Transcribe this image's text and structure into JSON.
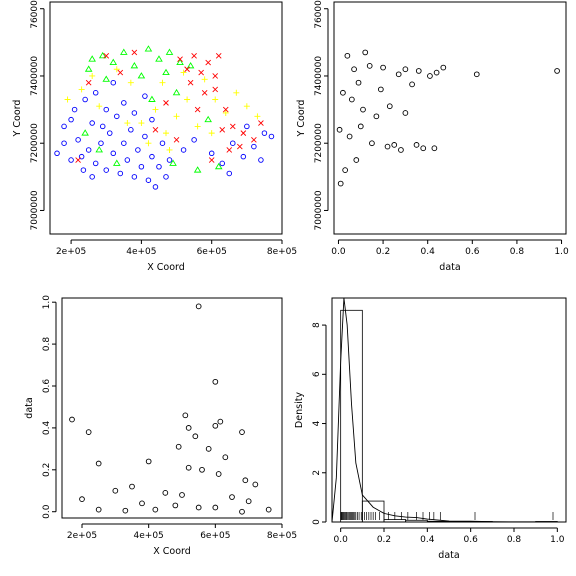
{
  "chart_data": [
    {
      "id": "map",
      "type": "scatter",
      "xlabel": "X Coord",
      "ylabel": "Y Coord",
      "xlim": [
        140000,
        800000
      ],
      "ylim": [
        6930000,
        7620000
      ],
      "xticks": [
        200000,
        400000,
        600000,
        800000
      ],
      "xtick_labels": [
        "2e+05",
        "4e+05",
        "6e+05",
        "8e+05"
      ],
      "yticks": [
        7000000,
        7200000,
        7400000,
        7600000
      ],
      "ytick_labels": [
        "7000000",
        "7200000",
        "7400000",
        "7600000"
      ],
      "colors": {
        "class1": "#0000ff",
        "class2": "#ffff00",
        "class3": "#00ff00",
        "class4": "#ff0000"
      },
      "series": [
        {
          "symbol": "circle",
          "color": "#0000ff",
          "points": [
            [
              160000,
              7170000
            ],
            [
              180000,
              7250000
            ],
            [
              200000,
              7150000
            ],
            [
              220000,
              7210000
            ],
            [
              235000,
              7120000
            ],
            [
              250000,
              7180000
            ],
            [
              260000,
              7260000
            ],
            [
              270000,
              7140000
            ],
            [
              285000,
              7200000
            ],
            [
              300000,
              7120000
            ],
            [
              310000,
              7230000
            ],
            [
              320000,
              7170000
            ],
            [
              330000,
              7280000
            ],
            [
              340000,
              7110000
            ],
            [
              350000,
              7200000
            ],
            [
              360000,
              7150000
            ],
            [
              370000,
              7240000
            ],
            [
              380000,
              7100000
            ],
            [
              390000,
              7180000
            ],
            [
              400000,
              7130000
            ],
            [
              410000,
              7220000
            ],
            [
              420000,
              7090000
            ],
            [
              430000,
              7160000
            ],
            [
              440000,
              7070000
            ],
            [
              450000,
              7130000
            ],
            [
              460000,
              7200000
            ],
            [
              470000,
              7100000
            ],
            [
              480000,
              7150000
            ],
            [
              210000,
              7300000
            ],
            [
              240000,
              7330000
            ],
            [
              270000,
              7350000
            ],
            [
              300000,
              7300000
            ],
            [
              320000,
              7380000
            ],
            [
              350000,
              7320000
            ],
            [
              380000,
              7290000
            ],
            [
              410000,
              7340000
            ],
            [
              430000,
              7270000
            ],
            [
              180000,
              7200000
            ],
            [
              200000,
              7270000
            ],
            [
              230000,
              7160000
            ],
            [
              260000,
              7100000
            ],
            [
              290000,
              7250000
            ],
            [
              600000,
              7170000
            ],
            [
              630000,
              7140000
            ],
            [
              660000,
              7200000
            ],
            [
              690000,
              7160000
            ],
            [
              720000,
              7190000
            ],
            [
              750000,
              7230000
            ],
            [
              770000,
              7220000
            ],
            [
              740000,
              7150000
            ],
            [
              700000,
              7250000
            ],
            [
              650000,
              7110000
            ],
            [
              550000,
              7210000
            ],
            [
              520000,
              7180000
            ]
          ]
        },
        {
          "symbol": "plus",
          "color": "#ffff00",
          "points": [
            [
              190000,
              7330000
            ],
            [
              230000,
              7360000
            ],
            [
              260000,
              7400000
            ],
            [
              280000,
              7310000
            ],
            [
              330000,
              7420000
            ],
            [
              370000,
              7380000
            ],
            [
              400000,
              7260000
            ],
            [
              440000,
              7300000
            ],
            [
              470000,
              7230000
            ],
            [
              500000,
              7280000
            ],
            [
              530000,
              7330000
            ],
            [
              560000,
              7250000
            ],
            [
              580000,
              7390000
            ],
            [
              610000,
              7330000
            ],
            [
              640000,
              7290000
            ],
            [
              670000,
              7350000
            ],
            [
              700000,
              7310000
            ],
            [
              730000,
              7280000
            ],
            [
              480000,
              7180000
            ],
            [
              420000,
              7200000
            ],
            [
              360000,
              7260000
            ],
            [
              520000,
              7410000
            ],
            [
              460000,
              7380000
            ],
            [
              600000,
              7230000
            ]
          ]
        },
        {
          "symbol": "triangle",
          "color": "#00ff00",
          "points": [
            [
              260000,
              7450000
            ],
            [
              290000,
              7460000
            ],
            [
              320000,
              7440000
            ],
            [
              350000,
              7470000
            ],
            [
              380000,
              7430000
            ],
            [
              420000,
              7480000
            ],
            [
              450000,
              7450000
            ],
            [
              480000,
              7470000
            ],
            [
              510000,
              7440000
            ],
            [
              540000,
              7430000
            ],
            [
              470000,
              7410000
            ],
            [
              400000,
              7400000
            ],
            [
              300000,
              7390000
            ],
            [
              250000,
              7420000
            ],
            [
              240000,
              7230000
            ],
            [
              280000,
              7180000
            ],
            [
              330000,
              7140000
            ],
            [
              490000,
              7140000
            ],
            [
              560000,
              7120000
            ],
            [
              620000,
              7130000
            ],
            [
              590000,
              7270000
            ],
            [
              500000,
              7350000
            ],
            [
              430000,
              7330000
            ]
          ]
        },
        {
          "symbol": "cross",
          "color": "#ff0000",
          "points": [
            [
              510000,
              7450000
            ],
            [
              530000,
              7420000
            ],
            [
              550000,
              7460000
            ],
            [
              570000,
              7410000
            ],
            [
              590000,
              7440000
            ],
            [
              610000,
              7400000
            ],
            [
              620000,
              7460000
            ],
            [
              540000,
              7380000
            ],
            [
              580000,
              7350000
            ],
            [
              610000,
              7360000
            ],
            [
              640000,
              7300000
            ],
            [
              660000,
              7250000
            ],
            [
              690000,
              7230000
            ],
            [
              720000,
              7210000
            ],
            [
              740000,
              7260000
            ],
            [
              630000,
              7240000
            ],
            [
              650000,
              7180000
            ],
            [
              680000,
              7190000
            ],
            [
              600000,
              7150000
            ],
            [
              560000,
              7300000
            ],
            [
              300000,
              7460000
            ],
            [
              340000,
              7410000
            ],
            [
              380000,
              7470000
            ],
            [
              220000,
              7150000
            ],
            [
              250000,
              7380000
            ],
            [
              440000,
              7240000
            ],
            [
              500000,
              7210000
            ],
            [
              470000,
              7320000
            ]
          ]
        }
      ]
    },
    {
      "id": "data-vs-y",
      "type": "scatter",
      "xlabel": "data",
      "ylabel": "Y Coord",
      "xlim": [
        -0.02,
        1.02
      ],
      "ylim": [
        6930000,
        7620000
      ],
      "xticks": [
        0,
        0.2,
        0.4,
        0.6,
        0.8,
        1.0
      ],
      "xtick_labels": [
        "0.0",
        "0.2",
        "0.4",
        "0.6",
        "0.8",
        "1.0"
      ],
      "yticks": [
        7000000,
        7200000,
        7400000,
        7600000
      ],
      "ytick_labels": [
        "7000000",
        "7200000",
        "7400000",
        "7600000"
      ],
      "points": [
        [
          0.98,
          7415000
        ],
        [
          0.62,
          7405000
        ],
        [
          0.47,
          7425000
        ],
        [
          0.44,
          7410000
        ],
        [
          0.43,
          7185000
        ],
        [
          0.41,
          7400000
        ],
        [
          0.38,
          7185000
        ],
        [
          0.36,
          7415000
        ],
        [
          0.33,
          7375000
        ],
        [
          0.3,
          7420000
        ],
        [
          0.28,
          7180000
        ],
        [
          0.25,
          7195000
        ],
        [
          0.22,
          7190000
        ],
        [
          0.2,
          7425000
        ],
        [
          0.19,
          7360000
        ],
        [
          0.17,
          7280000
        ],
        [
          0.15,
          7200000
        ],
        [
          0.14,
          7430000
        ],
        [
          0.12,
          7470000
        ],
        [
          0.11,
          7300000
        ],
        [
          0.1,
          7250000
        ],
        [
          0.09,
          7380000
        ],
        [
          0.08,
          7150000
        ],
        [
          0.07,
          7420000
        ],
        [
          0.06,
          7330000
        ],
        [
          0.05,
          7220000
        ],
        [
          0.04,
          7460000
        ],
        [
          0.03,
          7120000
        ],
        [
          0.02,
          7350000
        ],
        [
          0.01,
          7080000
        ],
        [
          0.005,
          7240000
        ],
        [
          0.3,
          7290000
        ],
        [
          0.35,
          7195000
        ],
        [
          0.27,
          7405000
        ],
        [
          0.23,
          7310000
        ]
      ]
    },
    {
      "id": "x-vs-data",
      "type": "scatter",
      "xlabel": "X Coord",
      "ylabel": "data",
      "xlim": [
        140000,
        800000
      ],
      "ylim": [
        -0.03,
        1.02
      ],
      "xticks": [
        200000,
        400000,
        600000,
        800000
      ],
      "xtick_labels": [
        "2e+05",
        "4e+05",
        "6e+05",
        "8e+05"
      ],
      "yticks": [
        0,
        0.2,
        0.4,
        0.6,
        0.8,
        1.0
      ],
      "ytick_labels": [
        "0.0",
        "0.2",
        "0.4",
        "0.6",
        "0.8",
        "1.0"
      ],
      "points": [
        [
          550000,
          0.98
        ],
        [
          600000,
          0.62
        ],
        [
          510000,
          0.46
        ],
        [
          170000,
          0.44
        ],
        [
          615000,
          0.43
        ],
        [
          600000,
          0.41
        ],
        [
          220000,
          0.38
        ],
        [
          680000,
          0.38
        ],
        [
          540000,
          0.36
        ],
        [
          520000,
          0.4
        ],
        [
          580000,
          0.3
        ],
        [
          490000,
          0.31
        ],
        [
          630000,
          0.26
        ],
        [
          400000,
          0.24
        ],
        [
          250000,
          0.23
        ],
        [
          520000,
          0.21
        ],
        [
          560000,
          0.2
        ],
        [
          610000,
          0.18
        ],
        [
          690000,
          0.15
        ],
        [
          720000,
          0.13
        ],
        [
          350000,
          0.12
        ],
        [
          300000,
          0.1
        ],
        [
          450000,
          0.09
        ],
        [
          500000,
          0.08
        ],
        [
          200000,
          0.06
        ],
        [
          650000,
          0.07
        ],
        [
          700000,
          0.05
        ],
        [
          380000,
          0.04
        ],
        [
          480000,
          0.03
        ],
        [
          550000,
          0.02
        ],
        [
          250000,
          0.01
        ],
        [
          330000,
          0.005
        ],
        [
          420000,
          0.01
        ],
        [
          600000,
          0.02
        ],
        [
          680000,
          0.0
        ],
        [
          760000,
          0.01
        ]
      ]
    },
    {
      "id": "histogram",
      "type": "bar",
      "xlabel": "data",
      "ylabel": "Density",
      "xlim": [
        -0.04,
        1.04
      ],
      "ylim": [
        0,
        9.1
      ],
      "xticks": [
        0,
        0.2,
        0.4,
        0.6,
        0.8,
        1.0
      ],
      "xtick_labels": [
        "0.0",
        "0.2",
        "0.4",
        "0.6",
        "0.8",
        "1.0"
      ],
      "yticks": [
        0,
        2,
        4,
        6,
        8
      ],
      "ytick_labels": [
        "0",
        "2",
        "4",
        "6",
        "8"
      ],
      "bins": [
        [
          0,
          0.1
        ],
        [
          0.1,
          0.2
        ],
        [
          0.2,
          0.3
        ],
        [
          0.3,
          0.4
        ],
        [
          0.4,
          0.5
        ],
        [
          0.5,
          0.6
        ],
        [
          0.6,
          0.7
        ],
        [
          0.7,
          0.8
        ],
        [
          0.8,
          0.9
        ],
        [
          0.9,
          1.0
        ]
      ],
      "values": [
        8.6,
        0.85,
        0.1,
        0.07,
        0.03,
        0.0,
        0.02,
        0.0,
        0.0,
        0.02
      ],
      "density_curve": [
        [
          -0.04,
          0.0
        ],
        [
          -0.02,
          1.8
        ],
        [
          0.0,
          6.5
        ],
        [
          0.015,
          9.1
        ],
        [
          0.03,
          8.0
        ],
        [
          0.05,
          4.8
        ],
        [
          0.07,
          2.4
        ],
        [
          0.1,
          1.1
        ],
        [
          0.15,
          0.6
        ],
        [
          0.2,
          0.35
        ],
        [
          0.25,
          0.25
        ],
        [
          0.3,
          0.2
        ],
        [
          0.35,
          0.18
        ],
        [
          0.4,
          0.12
        ],
        [
          0.45,
          0.08
        ],
        [
          0.5,
          0.04
        ],
        [
          0.6,
          0.03
        ],
        [
          0.7,
          0.01
        ],
        [
          0.8,
          0.005
        ],
        [
          0.9,
          0.005
        ],
        [
          1.0,
          0.005
        ]
      ],
      "rug": [
        0.0,
        0.003,
        0.006,
        0.01,
        0.014,
        0.018,
        0.022,
        0.026,
        0.03,
        0.035,
        0.04,
        0.045,
        0.05,
        0.055,
        0.06,
        0.065,
        0.07,
        0.078,
        0.085,
        0.095,
        0.1,
        0.11,
        0.12,
        0.13,
        0.14,
        0.15,
        0.16,
        0.18,
        0.2,
        0.22,
        0.25,
        0.28,
        0.31,
        0.35,
        0.38,
        0.41,
        0.43,
        0.46,
        0.62,
        0.98
      ]
    }
  ]
}
